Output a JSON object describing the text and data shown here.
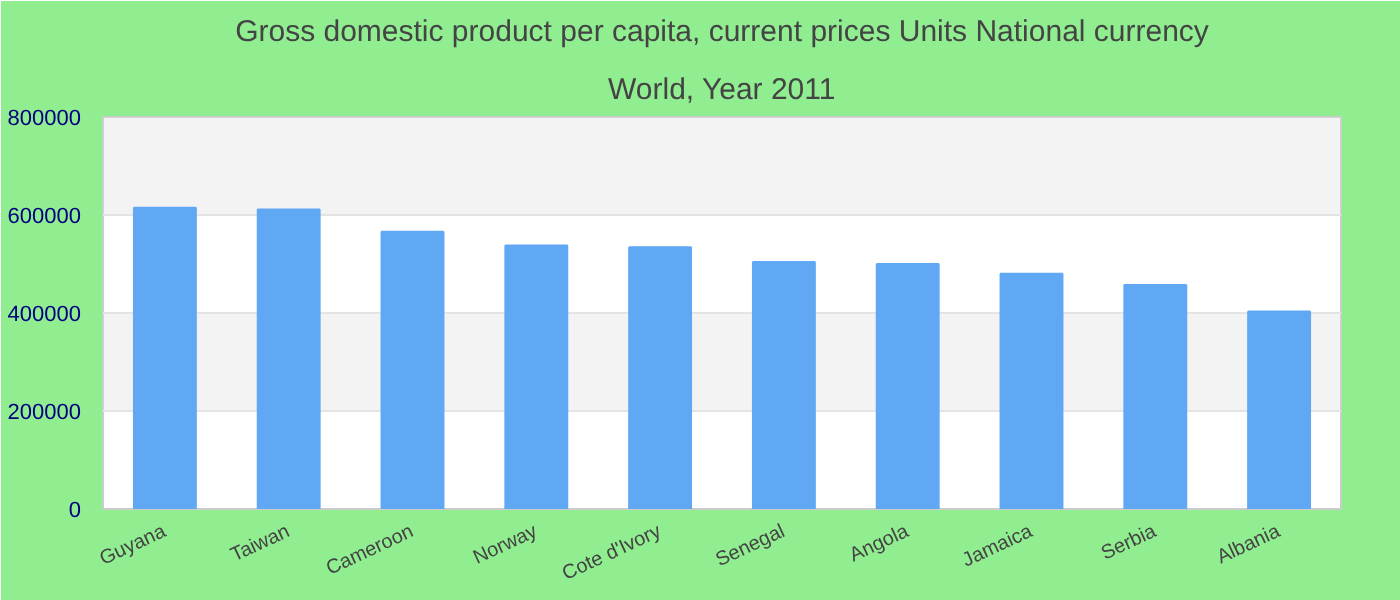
{
  "chart_data": {
    "type": "bar",
    "title": "Gross domestic product per capita, current prices Units National currency",
    "subtitle": "World, Year 2011",
    "categories": [
      "Guyana",
      "Taiwan",
      "Cameroon",
      "Norway",
      "Cote d'Ivory",
      "Senegal",
      "Angola",
      "Jamaica",
      "Serbia",
      "Albania"
    ],
    "values": [
      615000,
      611000,
      566000,
      538000,
      534000,
      504000,
      500000,
      480000,
      457000,
      403000
    ],
    "color": "#60a8f4",
    "ylim": [
      0,
      800000
    ],
    "yticks": [
      0,
      200000,
      400000,
      600000,
      800000
    ],
    "grid": "y"
  }
}
